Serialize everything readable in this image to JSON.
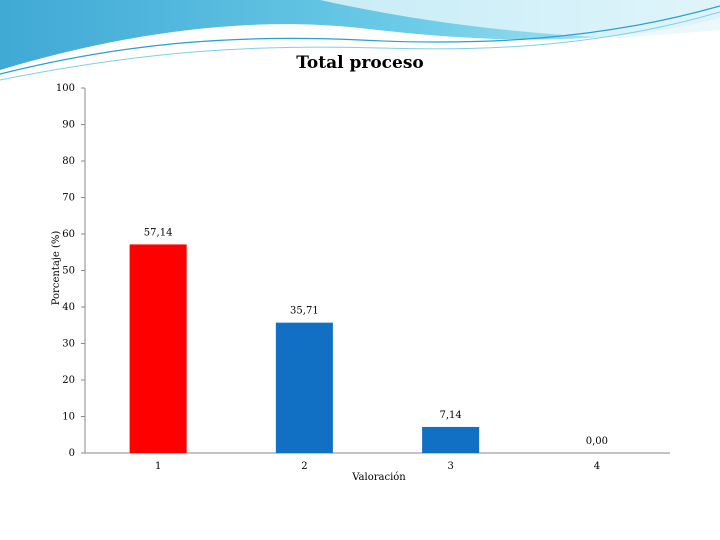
{
  "chart_data": {
    "type": "bar",
    "title": "Total proceso",
    "xlabel": "Valoración",
    "ylabel": "Porcentaje (%)",
    "ylim": [
      0,
      100
    ],
    "yticks": [
      "0",
      "10",
      "20",
      "30",
      "40",
      "50",
      "60",
      "70",
      "80",
      "90",
      "100"
    ],
    "categories": [
      "1",
      "2",
      "3",
      "4"
    ],
    "values": [
      57.14,
      35.71,
      7.14,
      0.0
    ],
    "data_labels": [
      "57,14",
      "35,71",
      "7,14",
      "0,00"
    ],
    "bar_colors": [
      "#ff0000",
      "#1170c4",
      "#1170c4",
      "#1170c4"
    ],
    "grid": false,
    "legend": "none"
  }
}
